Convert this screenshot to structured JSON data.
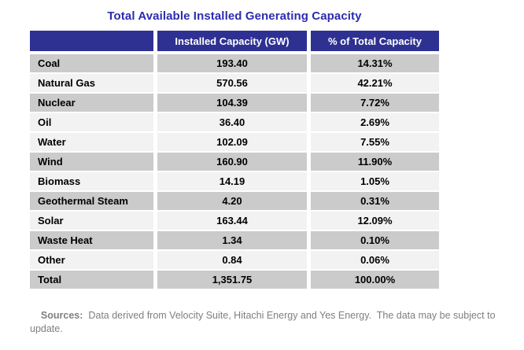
{
  "page": {
    "title": "Total Available Installed Generating Capacity"
  },
  "colors": {
    "title_text": "#2c2cb0",
    "header_bg": "#2e3192",
    "header_text": "#ffffff",
    "row_dark": "#cbcbcb",
    "row_light": "#f2f2f2",
    "body_text": "#000000",
    "footer_text": "#7f7f7f"
  },
  "table": {
    "columns": [
      "",
      "Installed Capacity (GW)",
      "% of Total Capacity"
    ],
    "rows": [
      {
        "fuel": "Coal",
        "capacity_gw": "193.40",
        "pct_of_total": "14.31%",
        "shade": "dark"
      },
      {
        "fuel": "Natural Gas",
        "capacity_gw": "570.56",
        "pct_of_total": "42.21%",
        "shade": "light"
      },
      {
        "fuel": "Nuclear",
        "capacity_gw": "104.39",
        "pct_of_total": "7.72%",
        "shade": "dark"
      },
      {
        "fuel": "Oil",
        "capacity_gw": "36.40",
        "pct_of_total": "2.69%",
        "shade": "light"
      },
      {
        "fuel": "Water",
        "capacity_gw": "102.09",
        "pct_of_total": "7.55%",
        "shade": "light"
      },
      {
        "fuel": "Wind",
        "capacity_gw": "160.90",
        "pct_of_total": "11.90%",
        "shade": "dark"
      },
      {
        "fuel": "Biomass",
        "capacity_gw": "14.19",
        "pct_of_total": "1.05%",
        "shade": "light"
      },
      {
        "fuel": "Geothermal Steam",
        "capacity_gw": "4.20",
        "pct_of_total": "0.31%",
        "shade": "dark"
      },
      {
        "fuel": "Solar",
        "capacity_gw": "163.44",
        "pct_of_total": "12.09%",
        "shade": "light"
      },
      {
        "fuel": "Waste Heat",
        "capacity_gw": "1.34",
        "pct_of_total": "0.10%",
        "shade": "dark"
      },
      {
        "fuel": "Other",
        "capacity_gw": "0.84",
        "pct_of_total": "0.06%",
        "shade": "light"
      },
      {
        "fuel": "Total",
        "capacity_gw": "1,351.75",
        "pct_of_total": "100.00%",
        "shade": "dark"
      }
    ]
  },
  "footer": {
    "label": "Sources:",
    "text": "  Data derived from Velocity Suite, Hitachi Energy and Yes Energy.  The data may be subject to update."
  },
  "chart_data": {
    "type": "table",
    "title": "Total Available Installed Generating Capacity",
    "columns": [
      "",
      "Installed Capacity (GW)",
      "% of Total Capacity"
    ],
    "categories": [
      "Coal",
      "Natural Gas",
      "Nuclear",
      "Oil",
      "Water",
      "Wind",
      "Biomass",
      "Geothermal Steam",
      "Solar",
      "Waste Heat",
      "Other",
      "Total"
    ],
    "series": [
      {
        "name": "Installed Capacity (GW)",
        "values": [
          193.4,
          570.56,
          104.39,
          36.4,
          102.09,
          160.9,
          14.19,
          4.2,
          163.44,
          1.34,
          0.84,
          1351.75
        ]
      },
      {
        "name": "% of Total Capacity",
        "values": [
          14.31,
          42.21,
          7.72,
          2.69,
          7.55,
          11.9,
          1.05,
          0.31,
          12.09,
          0.1,
          0.06,
          100.0
        ]
      }
    ],
    "source_note": "Sources:  Data derived from Velocity Suite, Hitachi Energy and Yes Energy.  The data may be subject to update."
  }
}
